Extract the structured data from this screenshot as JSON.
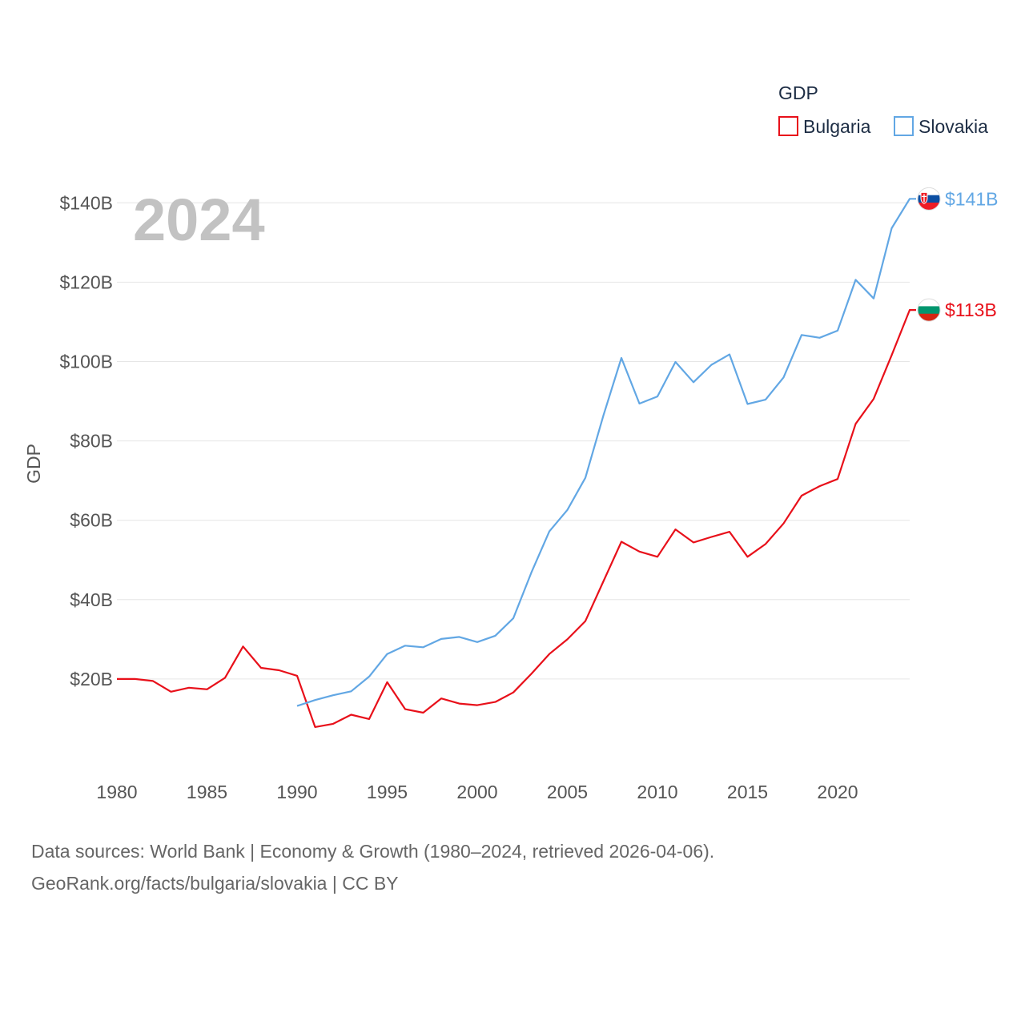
{
  "chart_data": {
    "type": "line",
    "title": "",
    "year_label": "2024",
    "xlabel": "",
    "ylabel": "GDP",
    "xlim": [
      1980,
      2024
    ],
    "ylim": [
      0,
      140
    ],
    "x_ticks": [
      1980,
      1985,
      1990,
      1995,
      2000,
      2005,
      2010,
      2015,
      2020
    ],
    "x_tick_labels": [
      "1980",
      "1985",
      "1990",
      "1995",
      "2000",
      "2005",
      "2010",
      "2015",
      "2020"
    ],
    "y_ticks": [
      20,
      40,
      60,
      80,
      100,
      120,
      140
    ],
    "y_tick_labels": [
      "$20B",
      "$40B",
      "$60B",
      "$80B",
      "$100B",
      "$120B",
      "$140B"
    ],
    "grid": true,
    "legend": {
      "title": "GDP",
      "position": "top-right"
    },
    "series": [
      {
        "name": "Bulgaria",
        "color": "#e8101a",
        "end_label": "$113B",
        "flag": "bulgaria-flag",
        "x": [
          1980,
          1981,
          1982,
          1983,
          1984,
          1985,
          1986,
          1987,
          1988,
          1989,
          1990,
          1991,
          1992,
          1993,
          1994,
          1995,
          1996,
          1997,
          1998,
          1999,
          2000,
          2001,
          2002,
          2003,
          2004,
          2005,
          2006,
          2007,
          2008,
          2009,
          2010,
          2011,
          2012,
          2013,
          2014,
          2015,
          2016,
          2017,
          2018,
          2019,
          2020,
          2021,
          2022,
          2023,
          2024
        ],
        "values": [
          20.0,
          20.0,
          19.5,
          16.8,
          17.8,
          17.4,
          20.3,
          28.2,
          22.8,
          22.2,
          20.8,
          7.9,
          8.7,
          11.0,
          9.9,
          19.2,
          12.4,
          11.5,
          15.1,
          13.8,
          13.4,
          14.2,
          16.6,
          21.3,
          26.3,
          30.0,
          34.6,
          44.6,
          54.6,
          52.1,
          50.8,
          57.7,
          54.4,
          55.8,
          57.1,
          50.8,
          54.0,
          59.2,
          66.2,
          68.6,
          70.4,
          84.3,
          90.6,
          101.6,
          113.0
        ]
      },
      {
        "name": "Slovakia",
        "color": "#62a7e4",
        "end_label": "$141B",
        "flag": "slovakia-flag",
        "x": [
          1990,
          1991,
          1992,
          1993,
          1994,
          1995,
          1996,
          1997,
          1998,
          1999,
          2000,
          2001,
          2002,
          2003,
          2004,
          2005,
          2006,
          2007,
          2008,
          2009,
          2010,
          2011,
          2012,
          2013,
          2014,
          2015,
          2016,
          2017,
          2018,
          2019,
          2020,
          2021,
          2022,
          2023,
          2024
        ],
        "values": [
          13.2,
          14.7,
          15.9,
          16.9,
          20.6,
          26.3,
          28.4,
          28.0,
          30.1,
          30.6,
          29.3,
          30.9,
          35.3,
          46.8,
          57.2,
          62.6,
          70.7,
          86.4,
          100.9,
          89.4,
          91.2,
          99.9,
          94.8,
          99.2,
          101.8,
          89.3,
          90.4,
          96.0,
          106.7,
          106.0,
          107.8,
          120.6,
          115.9,
          133.6,
          141.0
        ]
      }
    ]
  },
  "footer": {
    "line1": "Data sources: World Bank | Economy & Growth (1980–2024, retrieved 2026-04-06).",
    "line2": "GeoRank.org/facts/bulgaria/slovakia | CC BY"
  }
}
